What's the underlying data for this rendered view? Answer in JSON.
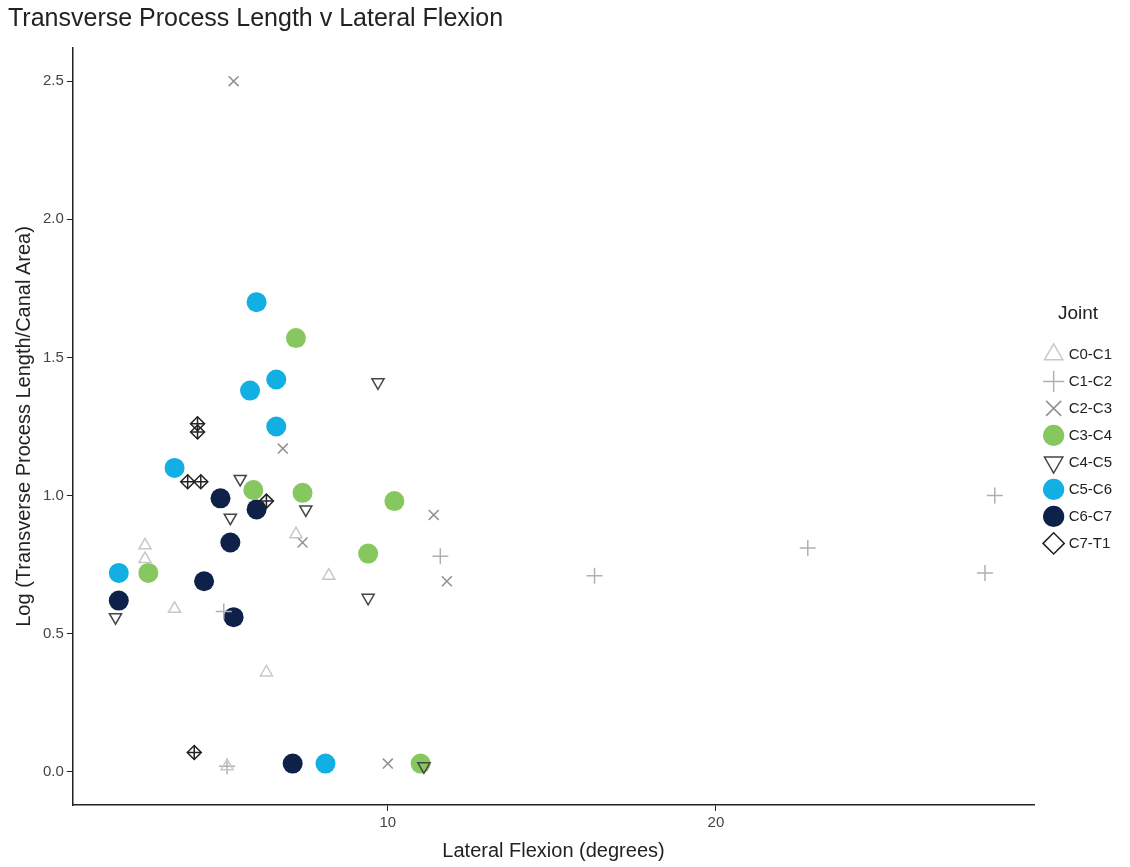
{
  "chart_data": {
    "type": "scatter",
    "title": "Transverse Process Length v Lateral Flexion",
    "xlabel": "Lateral Flexion (degrees)",
    "ylabel": "Log (Transverse Process Length/Canal Area)",
    "legend_title": "Joint",
    "legend": "right",
    "grid": false,
    "xlim": [
      0.4,
      29.7
    ],
    "xticks": [
      10,
      20
    ],
    "ylim": [
      -0.12,
      2.62
    ],
    "yticks": [
      {
        "value": 0,
        "label": "0.0"
      },
      {
        "value": 0.5,
        "label": "0.5"
      },
      {
        "value": 1,
        "label": "1.0"
      },
      {
        "value": 1.5,
        "label": "1.5"
      },
      {
        "value": 2,
        "label": "2.0"
      },
      {
        "value": 2.5,
        "label": "2.5"
      }
    ],
    "series": [
      {
        "name": "C0-C1",
        "color": "#c8c8c8",
        "marker": "triangle",
        "x": [
          2.6,
          2.6,
          3.5,
          7.2,
          8.2,
          6.3,
          5.1
        ],
        "values": [
          0.82,
          0.77,
          0.59,
          0.86,
          0.71,
          0.36,
          0.02
        ]
      },
      {
        "name": "C1-C2",
        "color": "#b0b0b0",
        "marker": "cross",
        "x": [
          5.0,
          5.1,
          11.6,
          16.3,
          22.8,
          28.5,
          28.2
        ],
        "values": [
          0.58,
          0.02,
          0.78,
          0.71,
          0.81,
          1.0,
          0.72
        ]
      },
      {
        "name": "C2-C3",
        "color": "#909090",
        "marker": "x",
        "x": [
          5.3,
          6.8,
          7.4,
          11.4,
          11.8,
          10.0
        ],
        "values": [
          2.5,
          1.17,
          0.83,
          0.93,
          0.69,
          0.03
        ]
      },
      {
        "name": "C3-C4",
        "color": "#86c75f",
        "marker": "circle",
        "x": [
          7.2,
          5.9,
          7.4,
          10.2,
          9.4,
          2.7,
          11.0
        ],
        "values": [
          1.57,
          1.02,
          1.01,
          0.98,
          0.79,
          0.72,
          0.03
        ]
      },
      {
        "name": "C4-C5",
        "color": "#444444",
        "marker": "triangle-down",
        "x": [
          9.7,
          5.5,
          7.5,
          5.2,
          9.4,
          1.7,
          11.1
        ],
        "values": [
          1.41,
          1.06,
          0.95,
          0.92,
          0.63,
          0.56,
          0.02
        ]
      },
      {
        "name": "C5-C6",
        "color": "#12afe3",
        "marker": "circle",
        "x": [
          6.0,
          6.6,
          5.8,
          6.6,
          3.5,
          1.8,
          8.1
        ],
        "values": [
          1.7,
          1.42,
          1.38,
          1.25,
          1.1,
          0.72,
          0.03
        ]
      },
      {
        "name": "C6-C7",
        "color": "#0e2148",
        "marker": "circle",
        "x": [
          4.9,
          6.0,
          5.2,
          4.4,
          1.8,
          5.3,
          7.1
        ],
        "values": [
          0.99,
          0.95,
          0.83,
          0.69,
          0.62,
          0.56,
          0.03
        ]
      },
      {
        "name": "C7-T1",
        "color": "#222222",
        "marker": "diamond-plus",
        "x": [
          4.2,
          4.2,
          3.9,
          4.3,
          6.3,
          4.1
        ],
        "values": [
          1.26,
          1.23,
          1.05,
          1.05,
          0.98,
          0.07
        ]
      }
    ]
  }
}
